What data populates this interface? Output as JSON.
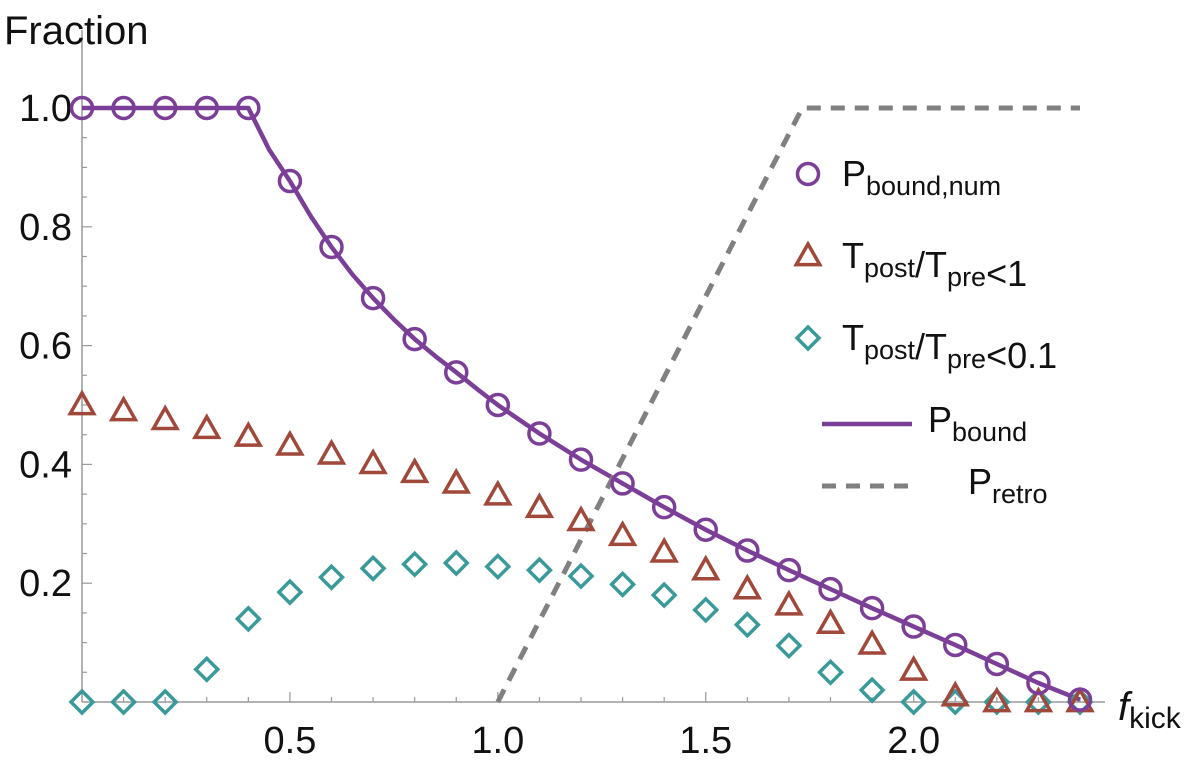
{
  "chart_data": {
    "type": "scatter",
    "ylabel": "Fraction",
    "xlabel": {
      "main": "f",
      "sub": "kick"
    },
    "xlim": [
      0.0,
      2.4
    ],
    "ylim": [
      0.0,
      1.0
    ],
    "x_ticks": [
      0.5,
      1.0,
      1.5,
      2.0
    ],
    "x_tick_labels": [
      "0.5",
      "1.0",
      "1.5",
      "2.0"
    ],
    "y_ticks": [
      0.2,
      0.4,
      0.6,
      0.8,
      1.0
    ],
    "y_tick_labels": [
      "0.2",
      "0.4",
      "0.6",
      "0.8",
      "1.0"
    ],
    "x": [
      0.0,
      0.1,
      0.2,
      0.3,
      0.4,
      0.5,
      0.6,
      0.7,
      0.8,
      0.9,
      1.0,
      1.1,
      1.2,
      1.3,
      1.4,
      1.5,
      1.6,
      1.7,
      1.8,
      1.9,
      2.0,
      2.1,
      2.2,
      2.3,
      2.4
    ],
    "series": [
      {
        "name": "P_bound,num",
        "marker": "circle",
        "color": "#7b3f98",
        "values": [
          1.0,
          1.0,
          1.0,
          1.0,
          1.0,
          0.877,
          0.766,
          0.68,
          0.611,
          0.555,
          0.5,
          0.452,
          0.408,
          0.368,
          0.328,
          0.29,
          0.255,
          0.222,
          0.19,
          0.158,
          0.127,
          0.096,
          0.064,
          0.032,
          0.004
        ]
      },
      {
        "name": "T_post/T_pre<1",
        "marker": "triangle",
        "color": "#a0483a",
        "values": [
          0.5,
          0.49,
          0.475,
          0.46,
          0.447,
          0.432,
          0.417,
          0.401,
          0.386,
          0.368,
          0.348,
          0.327,
          0.305,
          0.28,
          0.252,
          0.222,
          0.19,
          0.163,
          0.132,
          0.097,
          0.053,
          0.01,
          0.0,
          0.0,
          0.0
        ]
      },
      {
        "name": "T_post/T_pre<0.1",
        "marker": "diamond",
        "color": "#3a9a9a",
        "values": [
          0.0,
          0.0,
          0.0,
          0.055,
          0.14,
          0.185,
          0.21,
          0.225,
          0.232,
          0.234,
          0.228,
          0.222,
          0.212,
          0.198,
          0.18,
          0.155,
          0.13,
          0.095,
          0.05,
          0.02,
          0.0,
          0.0,
          0.0,
          0.0,
          0.0
        ]
      },
      {
        "name": "P_bound",
        "type": "line",
        "style": "solid",
        "color": "#7b3f98",
        "x": [
          0.0,
          0.4,
          0.45,
          0.5,
          0.55,
          0.6,
          0.65,
          0.7,
          0.75,
          0.8,
          0.85,
          0.9,
          0.95,
          1.0,
          1.1,
          1.2,
          1.3,
          1.4,
          1.5,
          1.6,
          1.7,
          1.8,
          1.9,
          2.0,
          2.1,
          2.2,
          2.3,
          2.4
        ],
        "values": [
          1.0,
          1.0,
          0.93,
          0.877,
          0.818,
          0.766,
          0.72,
          0.68,
          0.644,
          0.611,
          0.582,
          0.555,
          0.527,
          0.5,
          0.452,
          0.408,
          0.368,
          0.328,
          0.29,
          0.255,
          0.222,
          0.19,
          0.158,
          0.127,
          0.096,
          0.064,
          0.032,
          0.004
        ]
      },
      {
        "name": "P_retro",
        "type": "line",
        "style": "dashed",
        "color": "#808080",
        "x": [
          1.0,
          1.732,
          2.4
        ],
        "values": [
          0.0,
          1.0,
          1.0
        ]
      }
    ],
    "legend": {
      "position": "right",
      "entries": [
        {
          "marker": "circle",
          "color": "#7b3f98",
          "main": "P",
          "sub": "bound,num",
          "tail": ""
        },
        {
          "marker": "triangle",
          "color": "#a0483a",
          "parts": [
            [
              "T",
              "post"
            ],
            [
              "/T",
              "pre"
            ]
          ],
          "tail": "<1"
        },
        {
          "marker": "diamond",
          "color": "#3a9a9a",
          "parts": [
            [
              "T",
              "post"
            ],
            [
              "/T",
              "pre"
            ]
          ],
          "tail": "<0.1"
        },
        {
          "marker": "line-solid",
          "color": "#7b3f98",
          "main": "P",
          "sub": "bound",
          "tail": ""
        },
        {
          "marker": "line-dashed",
          "color": "#808080",
          "main": "P",
          "sub": "retro",
          "tail": ""
        }
      ]
    }
  }
}
